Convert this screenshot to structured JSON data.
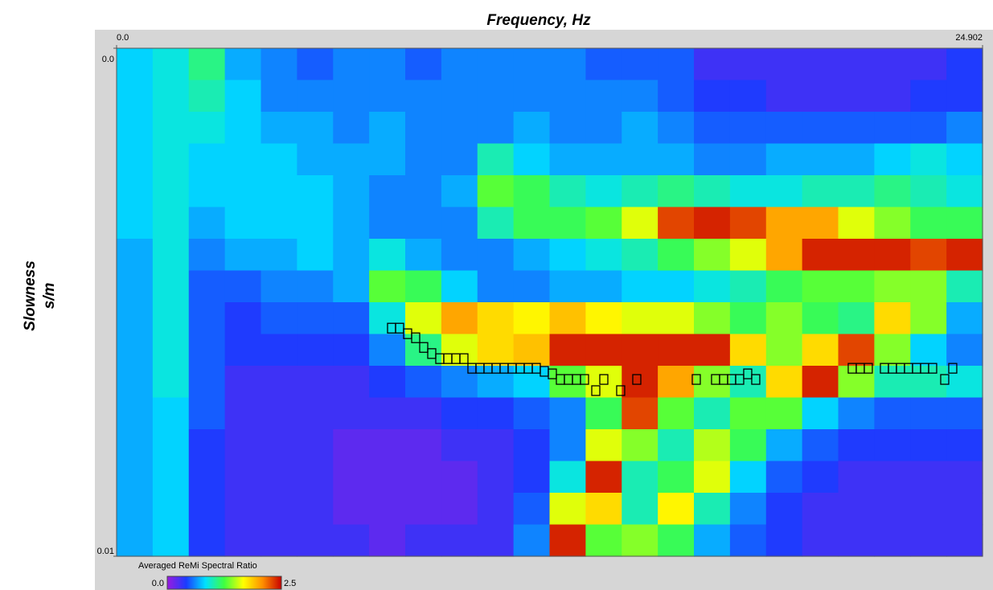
{
  "chart_data": {
    "type": "heatmap",
    "title": "Frequency, Hz",
    "y_label": [
      "Slowness",
      "s/m"
    ],
    "xlim": [
      0,
      24.902
    ],
    "ylim": [
      0,
      0.01
    ],
    "y_inverted": true,
    "xticks": [
      {
        "value": 0,
        "label": "0.0"
      },
      {
        "value": 24.902,
        "label": "24.902"
      }
    ],
    "yticks": [
      {
        "value": 0,
        "label": "0.0"
      },
      {
        "value": 0.01,
        "label": "0.01"
      }
    ],
    "colorbar": {
      "label": "Averaged ReMi Spectral Ratio",
      "clim": [
        0,
        2.5
      ],
      "ticks": [
        {
          "value": 0,
          "label": "0.0"
        },
        {
          "value": 2.5,
          "label": "2.5"
        }
      ],
      "colors": [
        "#9a1ae0",
        "#1a3cff",
        "#00e0ff",
        "#40ff40",
        "#ffff00",
        "#ff9000",
        "#c80000"
      ]
    },
    "values": [
      [
        0.8,
        0.9,
        1.1,
        0.7,
        0.6,
        0.5,
        0.6,
        0.6,
        0.5,
        0.6,
        0.6,
        0.6,
        0.6,
        0.5,
        0.5,
        0.5,
        0.3,
        0.3,
        0.3,
        0.3,
        0.3,
        0.3,
        0.3,
        0.4
      ],
      [
        0.8,
        0.9,
        1.0,
        0.8,
        0.6,
        0.6,
        0.6,
        0.6,
        0.6,
        0.6,
        0.6,
        0.6,
        0.6,
        0.6,
        0.6,
        0.5,
        0.4,
        0.4,
        0.3,
        0.3,
        0.3,
        0.3,
        0.4,
        0.4
      ],
      [
        0.8,
        0.9,
        0.9,
        0.8,
        0.7,
        0.7,
        0.6,
        0.7,
        0.6,
        0.6,
        0.6,
        0.7,
        0.6,
        0.6,
        0.7,
        0.6,
        0.5,
        0.5,
        0.5,
        0.5,
        0.5,
        0.5,
        0.5,
        0.6
      ],
      [
        0.8,
        0.9,
        0.8,
        0.8,
        0.8,
        0.7,
        0.7,
        0.7,
        0.6,
        0.6,
        1.0,
        0.8,
        0.7,
        0.7,
        0.7,
        0.7,
        0.6,
        0.6,
        0.7,
        0.7,
        0.7,
        0.8,
        0.9,
        0.8
      ],
      [
        0.8,
        0.9,
        0.8,
        0.8,
        0.8,
        0.8,
        0.7,
        0.6,
        0.6,
        0.7,
        1.3,
        1.2,
        1.0,
        0.9,
        1.0,
        1.1,
        1.0,
        0.9,
        0.9,
        1.0,
        1.0,
        1.1,
        1.0,
        0.9
      ],
      [
        0.8,
        0.9,
        0.7,
        0.8,
        0.8,
        0.8,
        0.7,
        0.6,
        0.6,
        0.6,
        1.0,
        1.2,
        1.2,
        1.3,
        1.6,
        2.3,
        2.4,
        2.3,
        2.0,
        2.0,
        1.6,
        1.4,
        1.2,
        1.2
      ],
      [
        0.7,
        0.9,
        0.6,
        0.7,
        0.7,
        0.8,
        0.7,
        0.9,
        0.7,
        0.6,
        0.6,
        0.7,
        0.8,
        0.9,
        1.0,
        1.2,
        1.4,
        1.6,
        2.0,
        2.4,
        2.4,
        2.4,
        2.3,
        2.4
      ],
      [
        0.7,
        0.9,
        0.5,
        0.5,
        0.6,
        0.6,
        0.7,
        1.3,
        1.2,
        0.8,
        0.6,
        0.6,
        0.7,
        0.7,
        0.8,
        0.8,
        0.9,
        1.0,
        1.2,
        1.3,
        1.3,
        1.4,
        1.4,
        1.0
      ],
      [
        0.7,
        0.9,
        0.5,
        0.4,
        0.5,
        0.5,
        0.5,
        0.9,
        1.6,
        2.0,
        1.8,
        1.7,
        1.9,
        1.7,
        1.6,
        1.6,
        1.4,
        1.2,
        1.4,
        1.2,
        1.1,
        1.8,
        1.4,
        0.7
      ],
      [
        0.7,
        0.9,
        0.5,
        0.4,
        0.4,
        0.4,
        0.4,
        0.6,
        1.1,
        1.6,
        1.8,
        1.9,
        2.4,
        2.4,
        2.4,
        2.4,
        2.4,
        1.8,
        1.4,
        1.8,
        2.3,
        1.4,
        0.8,
        0.6
      ],
      [
        0.7,
        0.9,
        0.5,
        0.3,
        0.3,
        0.3,
        0.3,
        0.4,
        0.5,
        0.6,
        0.7,
        0.8,
        1.3,
        1.6,
        2.4,
        2.0,
        1.4,
        1.0,
        1.8,
        2.4,
        1.4,
        1.0,
        1.0,
        0.9
      ],
      [
        0.7,
        0.8,
        0.5,
        0.3,
        0.3,
        0.3,
        0.3,
        0.3,
        0.3,
        0.4,
        0.4,
        0.5,
        0.6,
        1.2,
        2.3,
        1.3,
        1.0,
        1.3,
        1.3,
        0.8,
        0.6,
        0.5,
        0.5,
        0.5
      ],
      [
        0.7,
        0.8,
        0.4,
        0.3,
        0.3,
        0.3,
        0.2,
        0.2,
        0.2,
        0.3,
        0.3,
        0.4,
        0.6,
        1.6,
        1.4,
        1.0,
        1.5,
        1.2,
        0.7,
        0.5,
        0.4,
        0.4,
        0.4,
        0.4
      ],
      [
        0.7,
        0.8,
        0.4,
        0.3,
        0.3,
        0.3,
        0.2,
        0.2,
        0.2,
        0.2,
        0.3,
        0.4,
        0.9,
        2.4,
        1.0,
        1.2,
        1.6,
        0.8,
        0.5,
        0.4,
        0.3,
        0.3,
        0.3,
        0.3
      ],
      [
        0.7,
        0.8,
        0.4,
        0.3,
        0.3,
        0.3,
        0.2,
        0.2,
        0.2,
        0.2,
        0.3,
        0.5,
        1.6,
        1.8,
        1.0,
        1.7,
        1.0,
        0.6,
        0.4,
        0.3,
        0.3,
        0.3,
        0.3,
        0.3
      ],
      [
        0.7,
        0.8,
        0.4,
        0.3,
        0.3,
        0.3,
        0.3,
        0.2,
        0.3,
        0.3,
        0.3,
        0.6,
        2.4,
        1.3,
        1.4,
        1.2,
        0.7,
        0.5,
        0.4,
        0.3,
        0.3,
        0.3,
        0.3,
        0.3
      ]
    ],
    "picks": {
      "x": [
        7.907,
        8.138,
        8.369,
        8.601,
        8.832,
        9.063,
        9.294,
        9.525,
        9.757,
        9.988,
        10.219,
        10.45,
        10.681,
        10.913,
        11.144,
        11.375,
        11.606,
        11.838,
        12.069,
        12.3,
        12.531,
        12.762,
        12.993,
        13.225,
        13.456,
        13.78,
        14.011,
        14.496,
        14.959,
        16.67,
        17.224,
        17.456,
        17.687,
        17.918,
        18.149,
        18.38,
        21.155,
        21.386,
        21.617,
        22.08,
        22.311,
        22.542,
        22.773,
        23.005,
        23.236,
        23.467,
        23.814,
        24.045
      ],
      "y": [
        0.00551,
        0.00551,
        0.00562,
        0.0057,
        0.00589,
        0.00601,
        0.00611,
        0.00611,
        0.00611,
        0.00611,
        0.0063,
        0.0063,
        0.0063,
        0.0063,
        0.0063,
        0.0063,
        0.0063,
        0.0063,
        0.0063,
        0.00636,
        0.00641,
        0.00652,
        0.00652,
        0.00652,
        0.00652,
        0.00674,
        0.00652,
        0.00674,
        0.00652,
        0.00652,
        0.00652,
        0.00652,
        0.00652,
        0.00652,
        0.00641,
        0.00652,
        0.0063,
        0.0063,
        0.0063,
        0.0063,
        0.0063,
        0.0063,
        0.0063,
        0.0063,
        0.0063,
        0.0063,
        0.00652,
        0.0063
      ],
      "color": "#000000"
    }
  }
}
